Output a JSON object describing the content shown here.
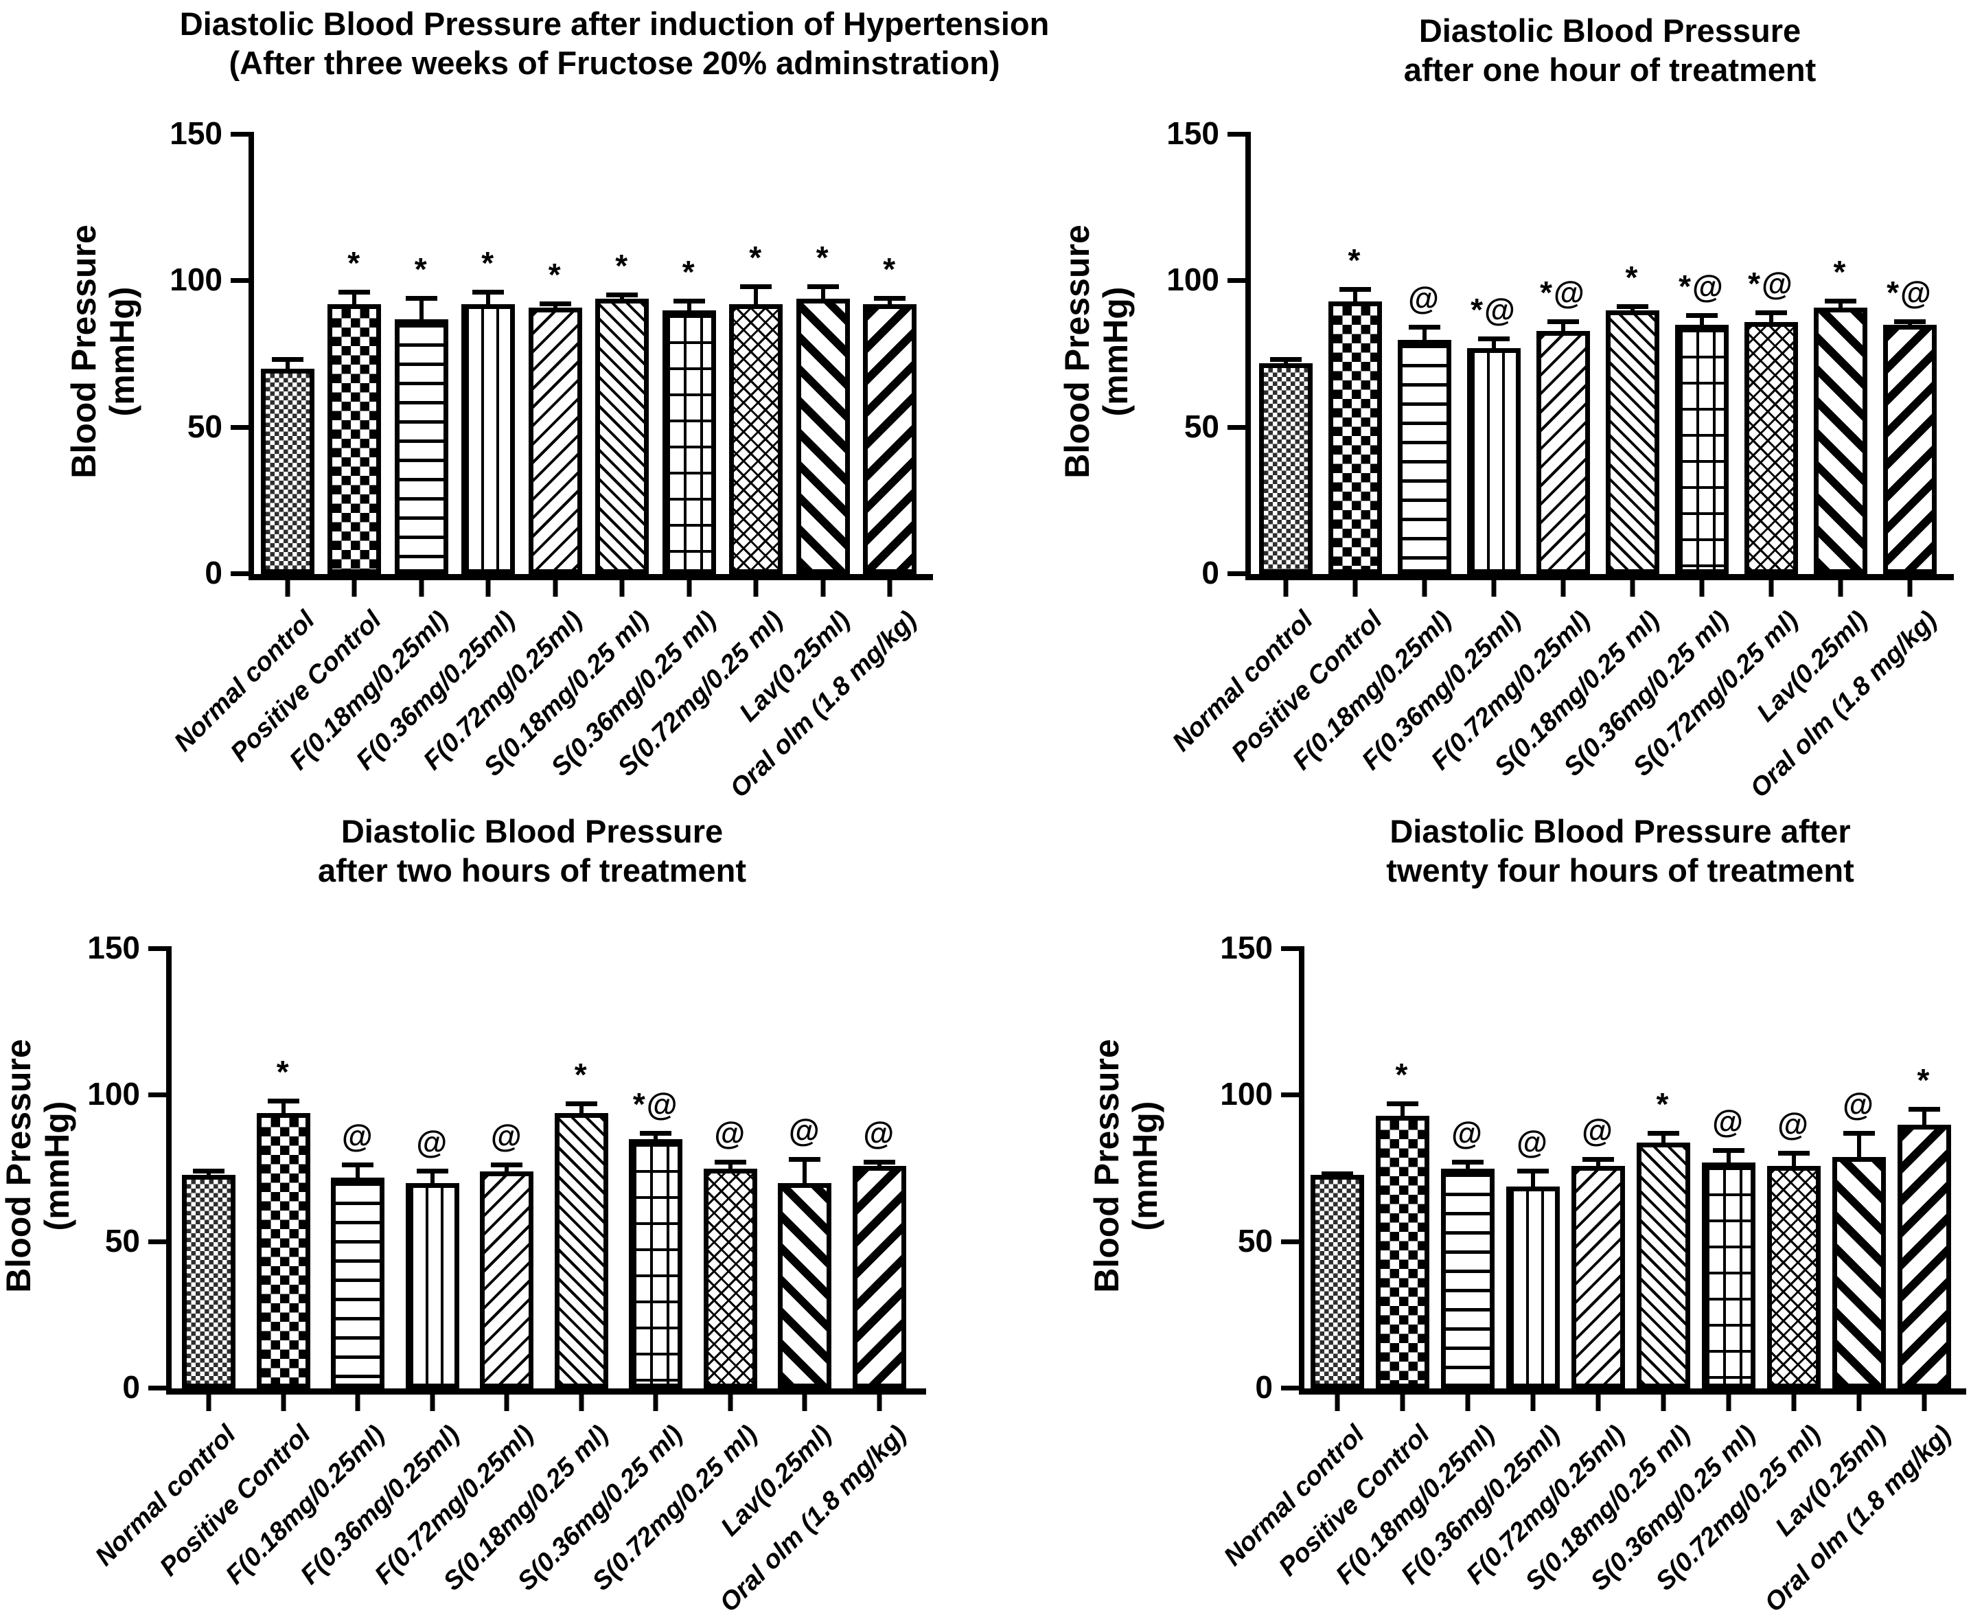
{
  "figure_note": "Four-panel bar figure, black hatched bars on white, GraphPad-style",
  "shared": {
    "ylabel_line1": "Blood Pressure",
    "ylabel_line2": "(mmHg)",
    "significance_symbols": [
      "*",
      "@"
    ]
  },
  "chart_data": [
    {
      "type": "bar",
      "title_line1": "Diastolic Blood Pressure after induction of Hypertension",
      "title_line2": "(After three weeks of Fructose 20% adminstration)",
      "ylabel_line1": "Blood Pressure",
      "ylabel_line2": "(mmHg)",
      "ylim": [
        0,
        150
      ],
      "yticks": [
        0,
        50,
        100,
        150
      ],
      "grid": false,
      "categories": [
        "Normal control",
        "Positive Control",
        "F(0.18mg/0.25ml)",
        "F(0.36mg/0.25ml)",
        "F(0.72mg/0.25ml)",
        "S(0.18mg/0.25 ml)",
        "S(0.36mg/0.25 ml)",
        "S(0.72mg/0.25 ml)",
        "Lav(0.25ml)",
        "Oral olm (1.8 mg/kg)"
      ],
      "values": [
        70,
        92,
        87,
        92,
        91,
        94,
        90,
        92,
        94,
        92
      ],
      "errors": [
        4,
        5,
        8,
        5,
        2,
        2,
        4,
        7,
        5,
        3
      ],
      "annotations": [
        "",
        "*",
        "*",
        "*",
        "*",
        "*",
        "*",
        "*",
        "*",
        "*"
      ],
      "patterns": [
        "checker-fine",
        "checker-coarse",
        "h-lines",
        "v-lines",
        "diag-forward-thin",
        "diag-back-thin",
        "grid",
        "diag-crosshatch",
        "diag-back-bold",
        "diag-forward-bold"
      ]
    },
    {
      "type": "bar",
      "title_line1": "Diastolic Blood Pressure",
      "title_line2": "after one hour of treatment",
      "ylabel_line1": "Blood Pressure",
      "ylabel_line2": "(mmHg)",
      "ylim": [
        0,
        150
      ],
      "yticks": [
        0,
        50,
        100,
        150
      ],
      "grid": false,
      "categories": [
        "Normal control",
        "Positive Control",
        "F(0.18mg/0.25ml)",
        "F(0.36mg/0.25ml)",
        "F(0.72mg/0.25ml)",
        "S(0.18mg/0.25 ml)",
        "S(0.36mg/0.25 ml)",
        "S(0.72mg/0.25 ml)",
        "Lav(0.25ml)",
        "Oral olm (1.8 mg/kg)"
      ],
      "values": [
        72,
        93,
        80,
        77,
        83,
        90,
        85,
        86,
        91,
        85
      ],
      "errors": [
        2,
        5,
        5,
        4,
        4,
        2,
        4,
        4,
        3,
        2
      ],
      "annotations": [
        "",
        "*",
        "@",
        "*@",
        "*@",
        "*",
        "*@",
        "*@",
        "*",
        "*@"
      ],
      "patterns": [
        "checker-fine",
        "checker-coarse",
        "h-lines",
        "v-lines",
        "diag-forward-thin",
        "diag-back-thin",
        "grid",
        "diag-crosshatch",
        "diag-back-bold",
        "diag-forward-bold"
      ]
    },
    {
      "type": "bar",
      "title_line1": "Diastolic Blood Pressure",
      "title_line2": "after two hours of treatment",
      "ylabel_line1": "Blood Pressure",
      "ylabel_line2": "(mmHg)",
      "ylim": [
        0,
        150
      ],
      "yticks": [
        0,
        50,
        100,
        150
      ],
      "grid": false,
      "categories": [
        "Normal control",
        "Positive Control",
        "F(0.18mg/0.25ml)",
        "F(0.36mg/0.25ml)",
        "F(0.72mg/0.25ml)",
        "S(0.18mg/0.25 ml)",
        "S(0.36mg/0.25 ml)",
        "S(0.72mg/0.25 ml)",
        "Lav(0.25ml)",
        "Oral olm (1.8 mg/kg)"
      ],
      "values": [
        73,
        94,
        72,
        70,
        74,
        94,
        85,
        75,
        70,
        76
      ],
      "errors": [
        2,
        5,
        5,
        5,
        3,
        4,
        3,
        3,
        9,
        2
      ],
      "annotations": [
        "",
        "*",
        "@",
        "@",
        "@",
        "*",
        "*@",
        "@",
        "@",
        "@"
      ],
      "patterns": [
        "checker-fine",
        "checker-coarse",
        "h-lines",
        "v-lines",
        "diag-forward-thin",
        "diag-back-thin",
        "grid",
        "diag-crosshatch",
        "diag-back-bold",
        "diag-forward-bold"
      ]
    },
    {
      "type": "bar",
      "title_line1": "Diastolic Blood Pressure after",
      "title_line2": "twenty four hours of treatment",
      "ylabel_line1": "Blood Pressure",
      "ylabel_line2": "(mmHg)",
      "ylim": [
        0,
        150
      ],
      "yticks": [
        0,
        50,
        100,
        150
      ],
      "grid": false,
      "categories": [
        "Normal control",
        "Positive Control",
        "F(0.18mg/0.25ml)",
        "F(0.36mg/0.25ml)",
        "F(0.72mg/0.25ml)",
        "S(0.18mg/0.25 ml)",
        "S(0.36mg/0.25 ml)",
        "S(0.72mg/0.25 ml)",
        "Lav(0.25ml)",
        "Oral olm (1.8 mg/kg)"
      ],
      "values": [
        73,
        93,
        75,
        69,
        76,
        84,
        77,
        76,
        79,
        90
      ],
      "errors": [
        1,
        5,
        3,
        6,
        3,
        4,
        5,
        5,
        9,
        6
      ],
      "annotations": [
        "",
        "*",
        "@",
        "@",
        "@",
        "*",
        "@",
        "@",
        "@",
        "*"
      ],
      "patterns": [
        "checker-fine",
        "checker-coarse",
        "h-lines",
        "v-lines",
        "diag-forward-thin",
        "diag-back-thin",
        "grid",
        "diag-crosshatch",
        "diag-back-bold",
        "diag-forward-bold"
      ]
    }
  ]
}
